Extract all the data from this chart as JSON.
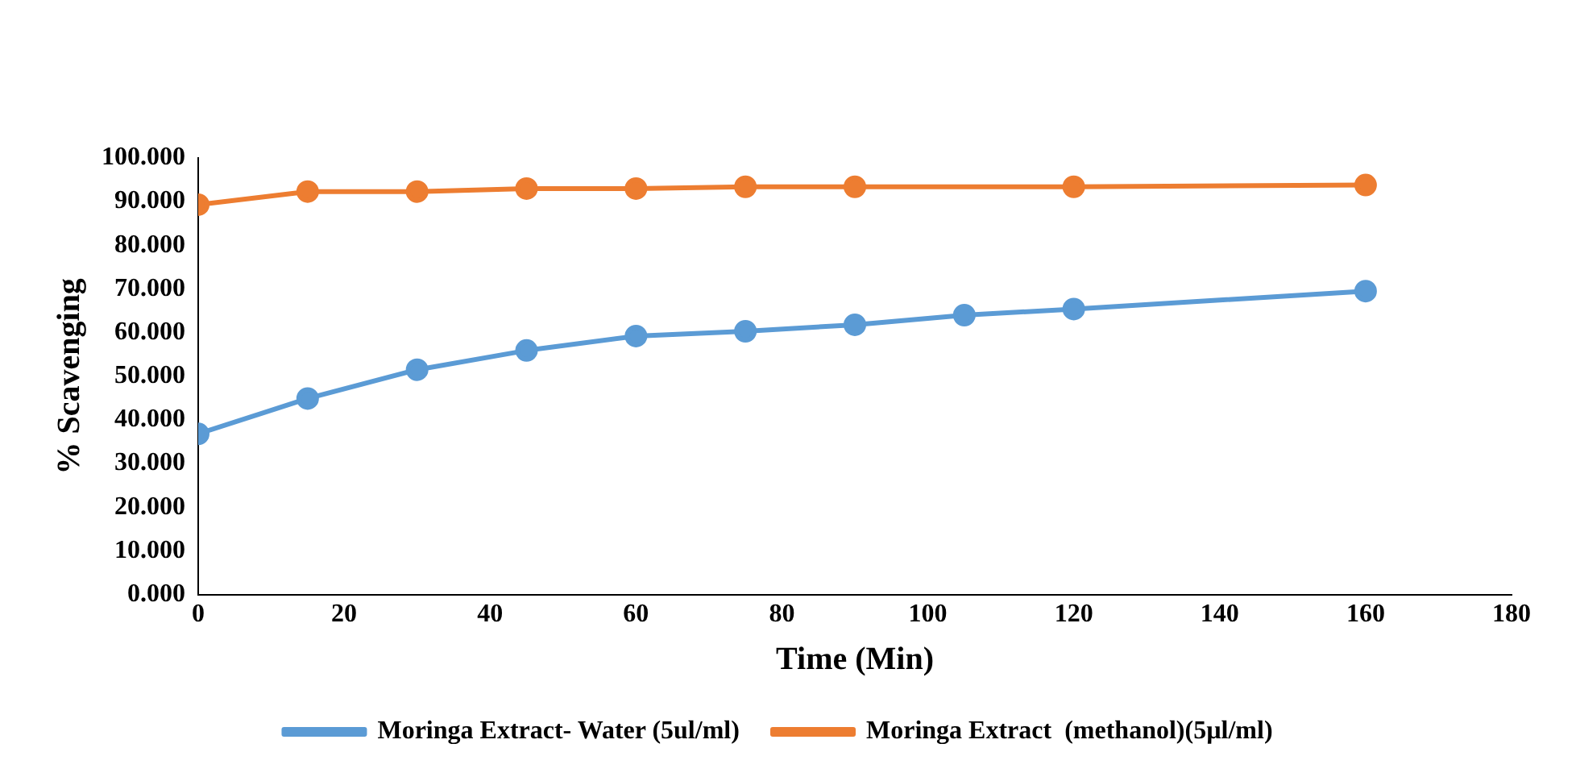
{
  "chart_data": {
    "type": "line",
    "xlabel": "Time (Min)",
    "ylabel": "% Scavenging",
    "x": [
      0,
      15,
      30,
      45,
      60,
      75,
      90,
      105,
      120,
      160
    ],
    "series": [
      {
        "name": "Moringa Extract- Water (5ul/ml)",
        "color": "#5b9bd5",
        "values": [
          36.8,
          44.9,
          51.5,
          55.9,
          59.2,
          60.3,
          61.8,
          64.0,
          65.4,
          69.5
        ]
      },
      {
        "name": "Moringa Extract  (methanol)(5µl/ml)",
        "color": "#ed7d31",
        "values": [
          89.3,
          92.3,
          92.3,
          93.0,
          93.0,
          93.4,
          93.4,
          null,
          93.4,
          93.8
        ]
      }
    ],
    "xlim": [
      0,
      180
    ],
    "xticks": [
      0,
      20,
      40,
      60,
      80,
      100,
      120,
      140,
      160,
      180
    ],
    "ylim": [
      0,
      100
    ],
    "yticks": [
      {
        "value": 0,
        "label": "0.000"
      },
      {
        "value": 10,
        "label": "10.000"
      },
      {
        "value": 20,
        "label": "20.000"
      },
      {
        "value": 30,
        "label": "30.000"
      },
      {
        "value": 40,
        "label": "40.000"
      },
      {
        "value": 50,
        "label": "50.000"
      },
      {
        "value": 60,
        "label": "60.000"
      },
      {
        "value": 70,
        "label": "70.000"
      },
      {
        "value": 80,
        "label": "80.000"
      },
      {
        "value": 90,
        "label": "90.000"
      },
      {
        "value": 100,
        "label": "100.000"
      }
    ],
    "grid": false,
    "legend": "bottom",
    "marker": "circle",
    "line_style": "solid"
  }
}
